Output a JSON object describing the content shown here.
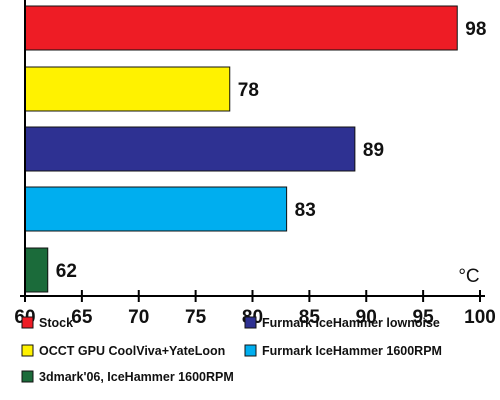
{
  "chart_data": {
    "type": "bar",
    "orientation": "horizontal",
    "series": [
      {
        "name": "Stock",
        "value": 98,
        "color": "#ee1c25"
      },
      {
        "name": "OCCT GPU CoolViva+YateLoon",
        "value": 78,
        "color": "#fff200"
      },
      {
        "name": "Furmark IceHammer lownoise",
        "value": 89,
        "color": "#2e3192"
      },
      {
        "name": "Furmark IceHammer 1600RPM",
        "value": 83,
        "color": "#00aeef"
      },
      {
        "name": "3dmark'06, IceHammer 1600RPM",
        "value": 62,
        "color": "#1b6b3a"
      }
    ],
    "xlim": [
      60,
      100
    ],
    "xticks": [
      "60",
      "65",
      "70",
      "75",
      "80",
      "85",
      "90",
      "95",
      "100"
    ],
    "unit": "°C",
    "grid": false,
    "legend_position": "bottom"
  }
}
